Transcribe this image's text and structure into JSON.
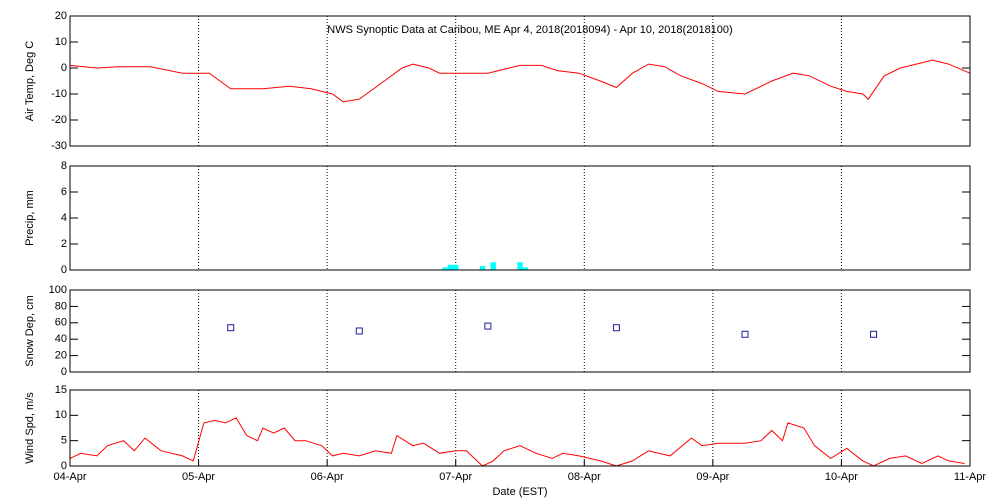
{
  "chart_data": [
    {
      "type": "line",
      "title": "NWS Synoptic Data at Caribou, ME   Apr  4, 2018(2018094) - Apr 10, 2018(2018100)",
      "ylabel": "Air Temp, Deg C",
      "xlim": [
        0,
        168
      ],
      "ylim": [
        -30,
        20
      ],
      "yticks": [
        -30,
        -20,
        -10,
        0,
        10,
        20
      ],
      "series": [
        {
          "color": "#ff0000",
          "x": [
            0,
            5,
            9,
            15,
            21,
            26,
            30,
            36,
            41,
            45,
            49,
            51,
            54,
            58,
            62,
            64,
            67,
            69,
            75,
            78,
            82,
            84,
            88,
            91,
            95,
            99,
            102,
            105,
            108,
            111,
            114,
            118,
            121,
            126,
            131,
            135,
            138,
            142,
            145,
            148,
            149,
            152,
            155,
            161,
            164,
            168
          ],
          "values": [
            1,
            0,
            0.5,
            0.5,
            -2,
            -2,
            -8,
            -8,
            -7,
            -8,
            -10,
            -13,
            -12,
            -6,
            0,
            1.5,
            0,
            -2,
            -2,
            -2,
            0,
            1,
            1,
            -1,
            -2,
            -5,
            -7.5,
            -2,
            1.5,
            0.5,
            -3,
            -6,
            -9,
            -10,
            -5,
            -2,
            -3,
            -7,
            -9,
            -10,
            -12,
            -3,
            0,
            3,
            1.5,
            -2
          ]
        }
      ]
    },
    {
      "type": "bar",
      "ylabel": "Precip, mm",
      "xlim": [
        0,
        168
      ],
      "ylim": [
        0,
        8
      ],
      "yticks": [
        0,
        2,
        4,
        6,
        8
      ],
      "series": [
        {
          "color": "#00ffff",
          "x": [
            70,
            71,
            72,
            77,
            79,
            84,
            85
          ],
          "values": [
            0.2,
            0.4,
            0.4,
            0.3,
            0.6,
            0.6,
            0.2
          ]
        }
      ]
    },
    {
      "type": "scatter",
      "ylabel": "Snow Dep, cm",
      "xlim": [
        0,
        168
      ],
      "ylim": [
        0,
        100
      ],
      "yticks": [
        0,
        20,
        40,
        60,
        80,
        100
      ],
      "series": [
        {
          "color": "#1c1ca0",
          "x": [
            30,
            54,
            78,
            102,
            126,
            150
          ],
          "values": [
            54,
            50,
            56,
            54,
            46,
            46
          ]
        }
      ]
    },
    {
      "type": "line",
      "ylabel": "Wind Spd, m/s",
      "xlabel": "Date (EST)",
      "xlim": [
        0,
        168
      ],
      "ylim": [
        0,
        15
      ],
      "yticks": [
        0,
        5,
        10,
        15
      ],
      "xticks": [
        {
          "value": 0,
          "label": "04-Apr"
        },
        {
          "value": 24,
          "label": "05-Apr"
        },
        {
          "value": 48,
          "label": "06-Apr"
        },
        {
          "value": 72,
          "label": "07-Apr"
        },
        {
          "value": 96,
          "label": "08-Apr"
        },
        {
          "value": 120,
          "label": "09-Apr"
        },
        {
          "value": 144,
          "label": "10-Apr"
        },
        {
          "value": 168,
          "label": "11-Apr"
        }
      ],
      "series": [
        {
          "color": "#ff0000",
          "x": [
            0,
            2,
            5,
            7,
            10,
            12,
            14,
            17,
            21,
            23,
            25,
            27,
            29,
            31,
            33,
            35,
            36,
            38,
            40,
            42,
            44,
            47,
            49,
            51,
            54,
            57,
            60,
            61,
            64,
            66,
            69,
            72,
            74,
            77,
            79,
            81,
            84,
            87,
            90,
            92,
            95,
            99,
            102,
            105,
            108,
            112,
            116,
            118,
            121,
            126,
            129,
            131,
            133,
            134,
            137,
            139,
            142,
            145,
            148,
            150,
            153,
            156,
            159,
            162,
            164,
            167
          ],
          "values": [
            1.5,
            2.5,
            2,
            4,
            5,
            3,
            5.5,
            3,
            2,
            1,
            8.5,
            9,
            8.5,
            9.5,
            6,
            5,
            7.5,
            6.5,
            7.5,
            5,
            5,
            4,
            2,
            2.5,
            2,
            3,
            2.5,
            6,
            4,
            4.5,
            2.5,
            3,
            3,
            0,
            1,
            3,
            4,
            2.5,
            1.5,
            2.5,
            2,
            1,
            0,
            1,
            3,
            2,
            5.5,
            4,
            4.5,
            4.5,
            5,
            7,
            5,
            8.5,
            7.5,
            4,
            1.5,
            3.5,
            1,
            0,
            1.5,
            2,
            0.5,
            2,
            1,
            0.5
          ]
        }
      ]
    }
  ]
}
